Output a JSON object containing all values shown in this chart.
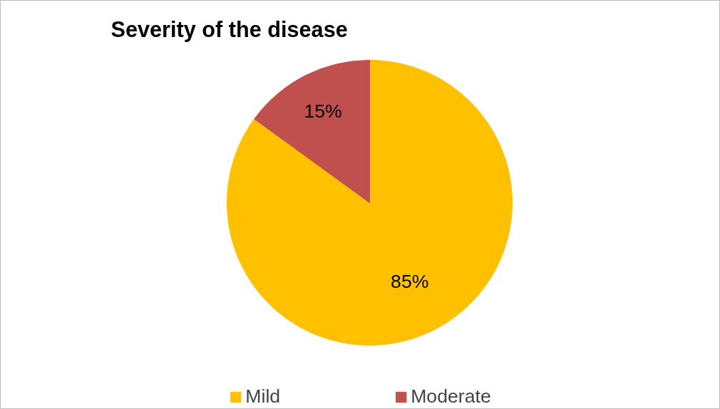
{
  "chart_data": {
    "type": "pie",
    "title": "Severity of the disease",
    "categories": [
      "Mild",
      "Moderate"
    ],
    "values": [
      85,
      15
    ],
    "colors": [
      "#ffc000",
      "#c0504d"
    ],
    "value_labels": [
      "85%",
      "15%"
    ],
    "legend": "bottom"
  }
}
